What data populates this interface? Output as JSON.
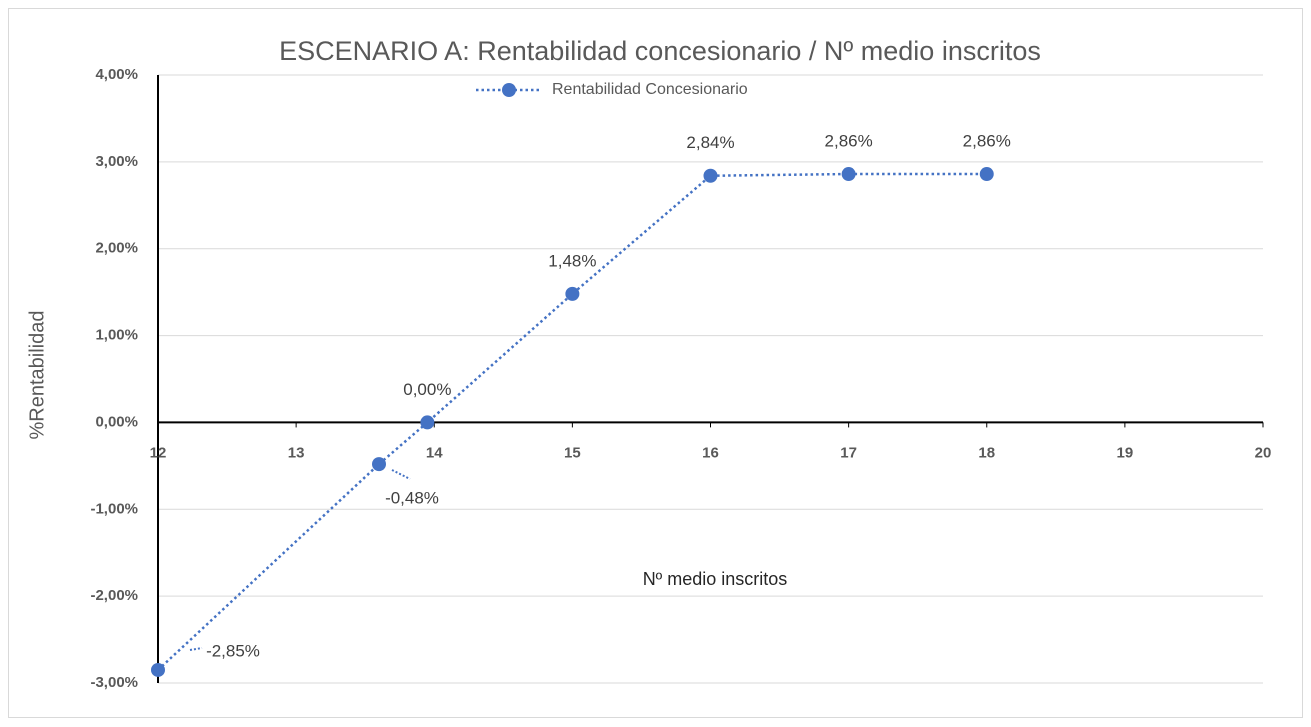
{
  "chart_data": {
    "type": "scatter",
    "title": "ESCENARIO A: Rentabilidad concesionario / Nº medio inscritos",
    "x_label": "Nº medio inscritos",
    "y_label": "%Rentabilidad",
    "x": [
      12,
      13.6,
      13.95,
      15,
      16,
      17,
      18
    ],
    "series": [
      {
        "name": "Rentabilidad Concesionario",
        "color": "#4472c4",
        "values": [
          -2.85,
          -0.48,
          0,
          1.48,
          2.84,
          2.86,
          2.86
        ],
        "value_labels": [
          "-2,85%",
          "-0,48%",
          "0,00%",
          "1,48%",
          "2,84%",
          "2,86%",
          "2,86%"
        ]
      }
    ],
    "xlim": [
      12,
      20
    ],
    "xticks": [
      12,
      13,
      14,
      15,
      16,
      17,
      18,
      19,
      20
    ],
    "ylim": [
      -3,
      4
    ],
    "yticks": [
      {
        "value": -3,
        "label": "-3,00%"
      },
      {
        "value": -2,
        "label": "-2,00%"
      },
      {
        "value": -1,
        "label": "-1,00%"
      },
      {
        "value": 0,
        "label": "0,00%"
      },
      {
        "value": 1,
        "label": "1,00%"
      },
      {
        "value": 2,
        "label": "2,00%"
      },
      {
        "value": 3,
        "label": "3,00%"
      },
      {
        "value": 4,
        "label": "4,00%"
      }
    ],
    "grid": true,
    "legend": "top"
  }
}
